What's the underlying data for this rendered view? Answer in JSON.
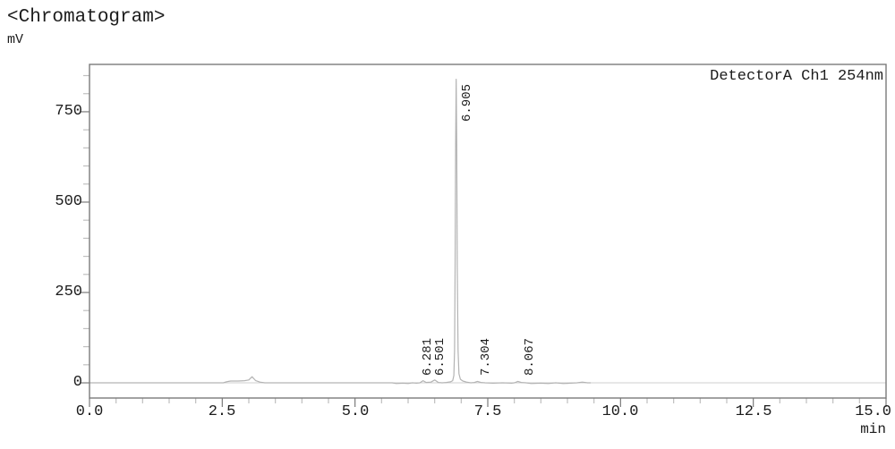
{
  "header": {
    "title": "<Chromatogram>",
    "y_axis_unit": "mV"
  },
  "plot": {
    "detector_label": "DetectorA Ch1 254nm",
    "x_axis_unit": "min"
  },
  "colors": {
    "text": "#1c1c1c",
    "frame": "#7a7a7a",
    "minor_tick": "#bfbfbf",
    "zero_line": "#cfcfcf",
    "trace": "#b3b3b3"
  },
  "chart_data": {
    "type": "line",
    "title": "<Chromatogram>",
    "ylabel": "mV",
    "xlabel": "min",
    "legend": "DetectorA Ch1 254nm",
    "legend_position": "top-right-inside-frame",
    "x_range": [
      0.0,
      15.0
    ],
    "y_view_range": [
      -42,
      881
    ],
    "x_major_tick_step": 2.5,
    "x_minor_tick_step": 0.5,
    "y_major_tick_step": 250,
    "y_minor_tick_step": 50,
    "x_tick_labels": [
      "0.0",
      "2.5",
      "5.0",
      "7.5",
      "10.0",
      "12.5",
      "15.0"
    ],
    "y_tick_labels": [
      "0",
      "250",
      "500",
      "750"
    ],
    "grid": "zero-baseline-only",
    "peaks": [
      {
        "retention_time_min": 6.281,
        "label": "6.281",
        "height_mV": 6
      },
      {
        "retention_time_min": 6.501,
        "label": "6.501",
        "height_mV": 8
      },
      {
        "retention_time_min": 6.905,
        "label": "6.905",
        "height_mV": 840
      },
      {
        "retention_time_min": 7.304,
        "label": "7.304",
        "height_mV": 4
      },
      {
        "retention_time_min": 8.067,
        "label": "8.067",
        "height_mV": 4
      }
    ],
    "unlabeled_features": [
      {
        "retention_time_min": 3.06,
        "height_mV": 17
      }
    ],
    "trace_points_min_mV": [
      [
        0,
        0
      ],
      [
        2.52,
        0
      ],
      [
        2.58,
        3
      ],
      [
        2.66,
        5
      ],
      [
        2.8,
        5
      ],
      [
        2.92,
        6
      ],
      [
        3.0,
        8
      ],
      [
        3.06,
        17
      ],
      [
        3.13,
        6
      ],
      [
        3.21,
        2
      ],
      [
        3.3,
        0
      ],
      [
        5.7,
        0
      ],
      [
        5.78,
        -2
      ],
      [
        5.9,
        -1
      ],
      [
        6.0,
        -2
      ],
      [
        6.08,
        0
      ],
      [
        6.16,
        -1
      ],
      [
        6.22,
        0
      ],
      [
        6.281,
        6
      ],
      [
        6.34,
        1
      ],
      [
        6.43,
        2
      ],
      [
        6.501,
        8
      ],
      [
        6.57,
        1
      ],
      [
        6.64,
        0
      ],
      [
        6.72,
        1
      ],
      [
        6.8,
        3
      ],
      [
        6.84,
        6
      ],
      [
        6.862,
        20
      ],
      [
        6.875,
        90
      ],
      [
        6.885,
        320
      ],
      [
        6.895,
        660
      ],
      [
        6.905,
        840
      ],
      [
        6.915,
        660
      ],
      [
        6.926,
        320
      ],
      [
        6.94,
        90
      ],
      [
        6.958,
        25
      ],
      [
        6.985,
        10
      ],
      [
        7.03,
        5
      ],
      [
        7.1,
        2
      ],
      [
        7.18,
        0
      ],
      [
        7.25,
        1
      ],
      [
        7.304,
        4
      ],
      [
        7.37,
        1
      ],
      [
        7.45,
        0
      ],
      [
        7.6,
        -1
      ],
      [
        7.78,
        0
      ],
      [
        7.95,
        -1
      ],
      [
        8.0,
        0
      ],
      [
        8.067,
        4
      ],
      [
        8.13,
        1
      ],
      [
        8.22,
        0
      ],
      [
        8.32,
        -2
      ],
      [
        8.5,
        -1
      ],
      [
        8.64,
        -2
      ],
      [
        8.78,
        0
      ],
      [
        8.92,
        -2
      ],
      [
        9.06,
        -1
      ],
      [
        9.18,
        0
      ],
      [
        9.28,
        2
      ],
      [
        9.38,
        0
      ],
      [
        9.44,
        0
      ]
    ]
  }
}
